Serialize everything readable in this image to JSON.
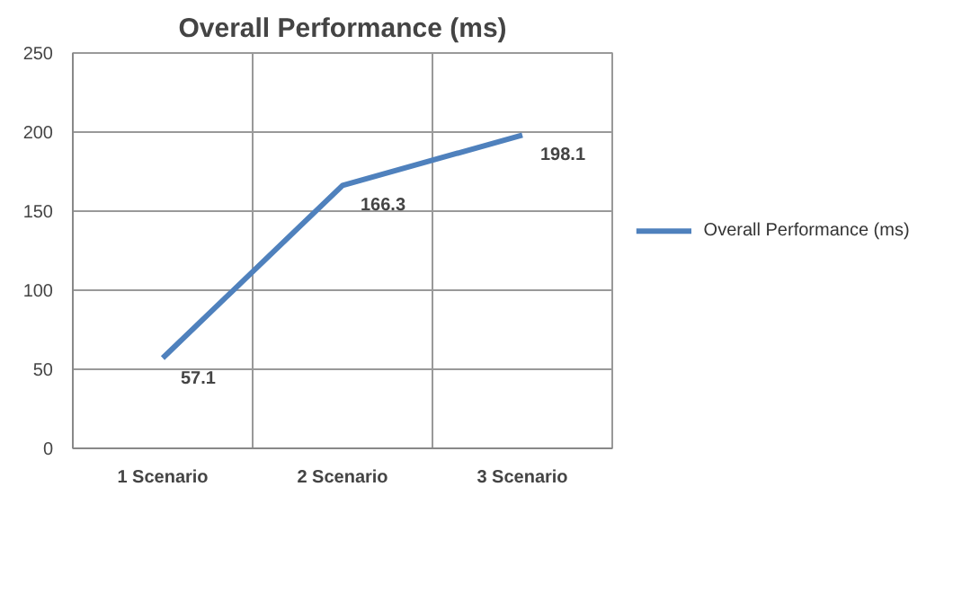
{
  "chart_data": {
    "type": "line",
    "title": "Overall Performance (ms)",
    "categories": [
      "1 Scenario",
      "2 Scenario",
      "3 Scenario"
    ],
    "series": [
      {
        "name": "Overall Performance (ms)",
        "color": "#4f81bd",
        "values": [
          57.1,
          166.3,
          198.1
        ]
      }
    ],
    "ylim": [
      0,
      250
    ],
    "yticks": [
      0,
      50,
      100,
      150,
      200,
      250
    ],
    "grid": true,
    "legend": "right",
    "data_labels": true,
    "marker": "none",
    "line_style": "solid"
  }
}
